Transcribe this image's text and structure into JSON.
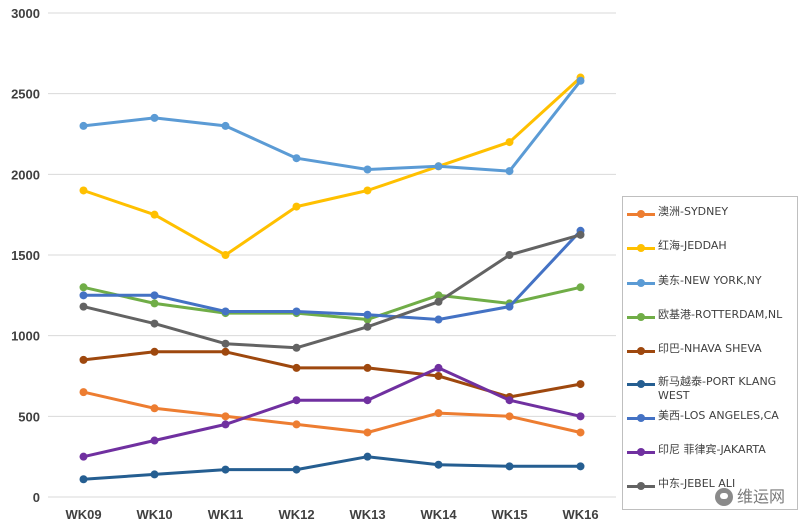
{
  "chart_data": {
    "type": "line",
    "categories": [
      "WK09",
      "WK10",
      "WK11",
      "WK12",
      "WK13",
      "WK14",
      "WK15",
      "WK16"
    ],
    "ylim": [
      0,
      3000
    ],
    "yticks": [
      "0",
      "500",
      "1000",
      "1500",
      "2000",
      "2500",
      "3000"
    ],
    "grid": true,
    "legend_position": "right",
    "series": [
      {
        "name": "澳洲-SYDNEY",
        "color": "#ED7D31",
        "values": [
          650,
          550,
          500,
          450,
          400,
          520,
          500,
          400
        ]
      },
      {
        "name": "红海-JEDDAH",
        "color": "#FFC000",
        "values": [
          1900,
          1750,
          1500,
          1800,
          1900,
          2050,
          2200,
          2600
        ]
      },
      {
        "name": "美东-NEW YORK,NY",
        "color": "#5B9BD5",
        "values": [
          2300,
          2350,
          2300,
          2100,
          2030,
          2050,
          2020,
          2580
        ]
      },
      {
        "name": "欧基港-ROTTERDAM,NL",
        "color": "#70AD47",
        "values": [
          1300,
          1200,
          1140,
          1140,
          1100,
          1250,
          1200,
          1300
        ]
      },
      {
        "name": "印巴-NHAVA SHEVA",
        "color": "#9E480E",
        "values": [
          850,
          900,
          900,
          800,
          800,
          750,
          620,
          700
        ]
      },
      {
        "name": "新马越泰-PORT KLANG WEST",
        "color": "#255E91",
        "values": [
          110,
          140,
          170,
          170,
          250,
          200,
          190,
          190
        ]
      },
      {
        "name": "美西-LOS ANGELES,CA",
        "color": "#4472C4",
        "values": [
          1250,
          1250,
          1150,
          1150,
          1130,
          1100,
          1180,
          1650
        ]
      },
      {
        "name": "印尼 菲律宾-JAKARTA",
        "color": "#7030A0",
        "values": [
          250,
          350,
          450,
          600,
          600,
          800,
          600,
          500
        ]
      },
      {
        "name": "中东-JEBEL ALI",
        "color": "#636363",
        "values": [
          1180,
          1075,
          950,
          925,
          1055,
          1210,
          1500,
          1625
        ]
      }
    ]
  },
  "watermark": {
    "text": "维运网"
  }
}
